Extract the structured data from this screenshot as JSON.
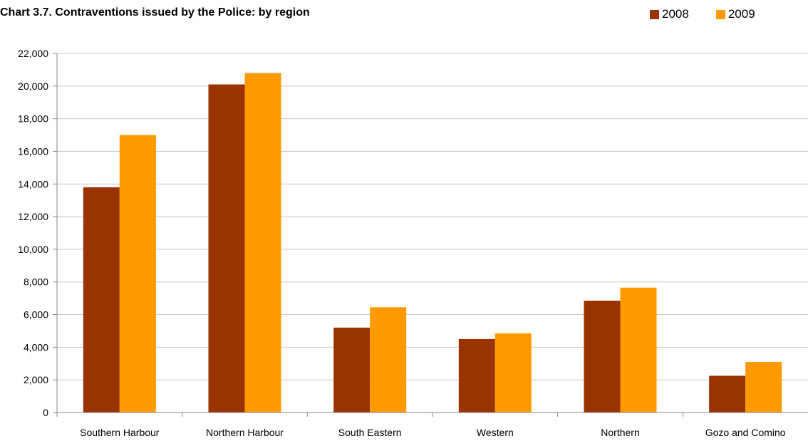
{
  "chart_data": {
    "type": "bar",
    "title": "Chart 3.7. Contraventions issued by the Police: by region",
    "categories": [
      "Southern Harbour",
      "Northern Harbour",
      "South Eastern",
      "Western",
      "Northern",
      "Gozo and Comino"
    ],
    "series": [
      {
        "name": "2008",
        "color": "#993300",
        "values": [
          13800,
          20100,
          5200,
          4500,
          6850,
          2250
        ]
      },
      {
        "name": "2009",
        "color": "#FF9900",
        "values": [
          17000,
          20800,
          6450,
          4850,
          7650,
          3100
        ]
      }
    ],
    "ylim": [
      0,
      22000
    ],
    "yticks": [
      0,
      2000,
      4000,
      6000,
      8000,
      10000,
      12000,
      14000,
      16000,
      18000,
      20000,
      22000
    ],
    "ytick_labels": [
      "0",
      "2,000",
      "4,000",
      "6,000",
      "8,000",
      "10,000",
      "12,000",
      "14,000",
      "16,000",
      "18,000",
      "20,000",
      "22,000"
    ],
    "grid": true,
    "legend_position": "top-right"
  }
}
